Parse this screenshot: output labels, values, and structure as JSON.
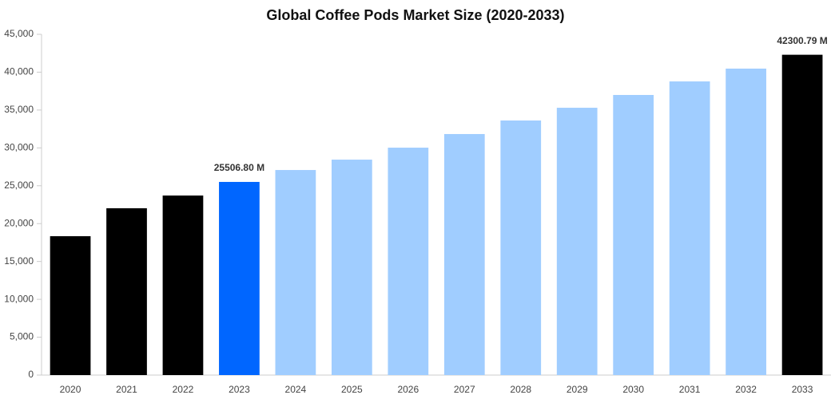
{
  "chart_data": {
    "type": "bar",
    "title": "Global Coffee Pods Market Size (2020-2033)",
    "categories": [
      "2020",
      "2021",
      "2022",
      "2023",
      "2024",
      "2025",
      "2026",
      "2027",
      "2028",
      "2029",
      "2030",
      "2031",
      "2032",
      "2033"
    ],
    "values": [
      18340,
      22030,
      23710,
      25506.8,
      27080,
      28450,
      30030,
      31830,
      33620,
      35300,
      36990,
      38780,
      40470,
      42300.79
    ],
    "value_labels": [
      null,
      null,
      null,
      "25506.80 M",
      null,
      null,
      null,
      null,
      null,
      null,
      null,
      null,
      null,
      "42300.79 M"
    ],
    "colors": [
      "#000000",
      "#000000",
      "#000000",
      "#0066ff",
      "#a0cdff",
      "#a0cdff",
      "#a0cdff",
      "#a0cdff",
      "#a0cdff",
      "#a0cdff",
      "#a0cdff",
      "#a0cdff",
      "#a0cdff",
      "#000000"
    ],
    "ylim": [
      0,
      45000
    ],
    "yticks": [
      0,
      {
        "value": 5000,
        "label": "5,000"
      },
      {
        "value": 10000,
        "label": "10,000"
      },
      {
        "value": 15000,
        "label": "15,000"
      },
      {
        "value": 20000,
        "label": "20,000"
      },
      {
        "value": 25000,
        "label": "25,000"
      },
      {
        "value": 30000,
        "label": "30,000"
      },
      {
        "value": 35000,
        "label": "35,000"
      },
      {
        "value": 40000,
        "label": "40,000"
      },
      {
        "value": 45000,
        "label": "45,000"
      }
    ],
    "grid": false
  }
}
